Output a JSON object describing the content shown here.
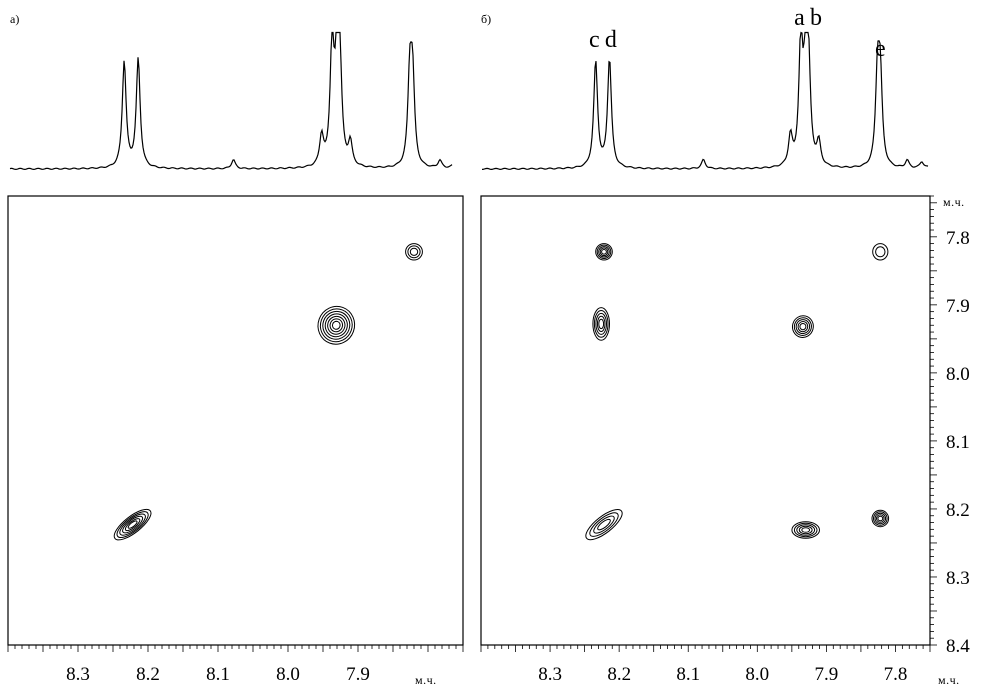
{
  "chart_data": [
    {
      "type": "2D NMR contour",
      "panel_label": "а)",
      "x_unit": "м.ч.",
      "x_range": [
        8.4,
        7.75
      ],
      "x_ticks": [
        "8.3",
        "8.2",
        "8.1",
        "8.0",
        "7.9"
      ],
      "y_range": [
        7.74,
        8.4
      ],
      "spectrum_peaks": [
        {
          "ppm": 8.234,
          "height": 0.82
        },
        {
          "ppm": 8.214,
          "height": 0.84
        },
        {
          "ppm": 8.078,
          "height": 0.07
        },
        {
          "ppm": 7.952,
          "height": 0.23
        },
        {
          "ppm": 7.937,
          "height": 0.93
        },
        {
          "ppm": 7.93,
          "height": 0.74
        },
        {
          "ppm": 7.926,
          "height": 0.72
        },
        {
          "ppm": 7.911,
          "height": 0.18
        },
        {
          "ppm": 7.826,
          "height": 0.68
        },
        {
          "ppm": 7.822,
          "height": 0.66
        },
        {
          "ppm": 7.783,
          "height": 0.06
        },
        {
          "ppm": 7.762,
          "height": 0.05
        },
        {
          "ppm": 7.746,
          "height": 0.05
        }
      ],
      "cross_peaks": [
        {
          "x": 7.82,
          "y": 7.822,
          "rx": 0.012,
          "ry": 0.012,
          "levels": 3,
          "angle": 0
        },
        {
          "x": 7.931,
          "y": 7.93,
          "rx": 0.026,
          "ry": 0.028,
          "levels": 7,
          "angle": 20
        },
        {
          "x": 8.222,
          "y": 8.223,
          "rx": 0.032,
          "ry": 0.012,
          "levels": 6,
          "angle": -38
        }
      ]
    },
    {
      "type": "2D NMR contour",
      "panel_label": "б)",
      "x_unit": "м.ч.",
      "y_unit": "м.ч.",
      "x_range": [
        8.4,
        7.75
      ],
      "x_ticks": [
        "8.3",
        "8.2",
        "8.1",
        "8.0",
        "7.9",
        "7.8"
      ],
      "y_range": [
        7.74,
        8.4
      ],
      "y_ticks": [
        "7.8",
        "7.9",
        "8.0",
        "8.1",
        "8.2",
        "8.3",
        "8.4"
      ],
      "peak_labels": [
        {
          "text": "c",
          "ppm": 8.236
        },
        {
          "text": "d",
          "ppm": 8.212
        },
        {
          "text": "a",
          "ppm": 7.939
        },
        {
          "text": "b",
          "ppm": 7.915
        },
        {
          "text": "e",
          "ppm": 7.822
        }
      ],
      "spectrum_peaks": [
        {
          "ppm": 8.234,
          "height": 0.82
        },
        {
          "ppm": 8.214,
          "height": 0.84
        },
        {
          "ppm": 8.078,
          "height": 0.07
        },
        {
          "ppm": 7.952,
          "height": 0.23
        },
        {
          "ppm": 7.937,
          "height": 0.93
        },
        {
          "ppm": 7.93,
          "height": 0.74
        },
        {
          "ppm": 7.926,
          "height": 0.72
        },
        {
          "ppm": 7.911,
          "height": 0.18
        },
        {
          "ppm": 7.826,
          "height": 0.68
        },
        {
          "ppm": 7.822,
          "height": 0.66
        },
        {
          "ppm": 7.783,
          "height": 0.06
        },
        {
          "ppm": 7.762,
          "height": 0.05
        },
        {
          "ppm": 7.746,
          "height": 0.05
        }
      ],
      "cross_peaks": [
        {
          "x": 8.222,
          "y": 7.822,
          "rx": 0.012,
          "ry": 0.012,
          "levels": 5,
          "angle": 0
        },
        {
          "x": 7.822,
          "y": 7.822,
          "rx": 0.011,
          "ry": 0.012,
          "levels": 2,
          "angle": 0
        },
        {
          "x": 8.226,
          "y": 7.928,
          "rx": 0.012,
          "ry": 0.024,
          "levels": 5,
          "angle": 0
        },
        {
          "x": 7.934,
          "y": 7.932,
          "rx": 0.015,
          "ry": 0.016,
          "levels": 5,
          "angle": 15
        },
        {
          "x": 8.222,
          "y": 8.223,
          "rx": 0.032,
          "ry": 0.012,
          "levels": 4,
          "angle": -38
        },
        {
          "x": 7.93,
          "y": 8.231,
          "rx": 0.02,
          "ry": 0.012,
          "levels": 5,
          "angle": 0
        },
        {
          "x": 7.822,
          "y": 8.214,
          "rx": 0.012,
          "ry": 0.012,
          "levels": 5,
          "angle": 0
        }
      ]
    }
  ]
}
